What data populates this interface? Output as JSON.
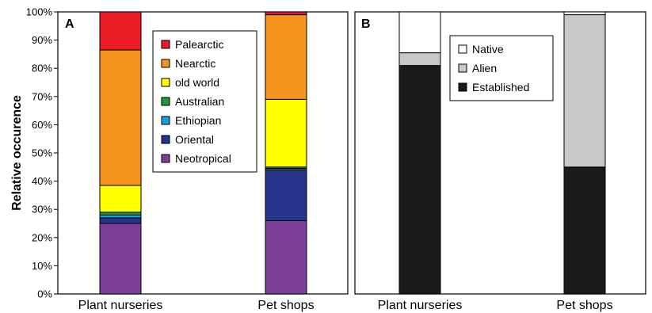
{
  "chart_data": [
    {
      "panel": "A",
      "type": "bar",
      "stacked": true,
      "categories": [
        "Plant nurseries",
        "Pet shops"
      ],
      "ylabel": "Relative occurence",
      "ylim": [
        0,
        100
      ],
      "yticks": [
        "0%",
        "10%",
        "20%",
        "30%",
        "40%",
        "50%",
        "60%",
        "70%",
        "80%",
        "90%",
        "100%"
      ],
      "legend_position": "top-right",
      "series": [
        {
          "name": "Neotropical",
          "color": "#7b3f98",
          "values": [
            25,
            26
          ]
        },
        {
          "name": "Oriental",
          "color": "#27348b",
          "values": [
            2,
            18
          ]
        },
        {
          "name": "Ethiopian",
          "color": "#1aa0dd",
          "values": [
            1,
            0.5
          ]
        },
        {
          "name": "Australian",
          "color": "#1b9a3b",
          "values": [
            1,
            0.5
          ]
        },
        {
          "name": "old world",
          "color": "#ffff00",
          "values": [
            9.5,
            24
          ]
        },
        {
          "name": "Nearctic",
          "color": "#f7941d",
          "values": [
            48,
            30
          ]
        },
        {
          "name": "Palearctic",
          "color": "#ec1c24",
          "values": [
            13.5,
            1
          ]
        }
      ],
      "legend_order": [
        "Palearctic",
        "Nearctic",
        "old world",
        "Australian",
        "Ethiopian",
        "Oriental",
        "Neotropical"
      ]
    },
    {
      "panel": "B",
      "type": "bar",
      "stacked": true,
      "categories": [
        "Plant nurseries",
        "Pet shops"
      ],
      "ylim": [
        0,
        100
      ],
      "legend_position": "top-right",
      "series": [
        {
          "name": "Established",
          "color": "#1a1a1a",
          "values": [
            81,
            45
          ]
        },
        {
          "name": "Alien",
          "color": "#c8c8c8",
          "values": [
            4.5,
            54
          ]
        },
        {
          "name": "Native",
          "color": "#ffffff",
          "values": [
            14.5,
            1
          ]
        }
      ],
      "legend_order": [
        "Native",
        "Alien",
        "Established"
      ]
    }
  ]
}
